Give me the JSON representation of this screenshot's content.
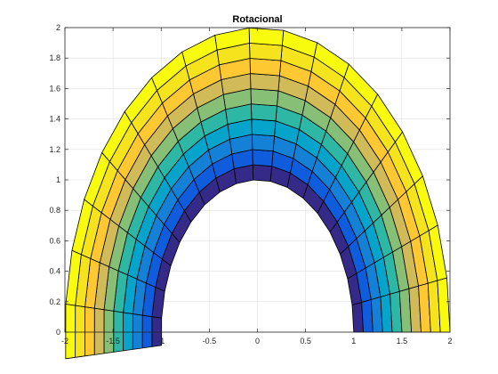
{
  "chart_data": {
    "type": "heatmap",
    "subtype": "polar-mesh-surface",
    "title": "Rotacional",
    "xlabel": "",
    "ylabel": "",
    "xlim": [
      -2,
      2
    ],
    "ylim": [
      0,
      2
    ],
    "xticks": [
      "-2",
      "-1.5",
      "-1",
      "-0.5",
      "0",
      "0.5",
      "1",
      "1.5",
      "2"
    ],
    "yticks": [
      "0",
      "0.2",
      "0.4",
      "0.6",
      "0.8",
      "1",
      "1.2",
      "1.4",
      "1.6",
      "1.8",
      "2"
    ],
    "grid": true,
    "legend": "none",
    "mesh": {
      "inner_radius": 1.0,
      "outer_radius": 2.0,
      "radial_rings": 10,
      "angle_start_deg": 0,
      "angle_end_deg": 185,
      "angular_segments": 18
    },
    "ring_values": [
      0.05,
      0.15,
      0.25,
      0.35,
      0.45,
      0.55,
      0.65,
      0.75,
      0.85,
      0.95
    ],
    "colormap": "parula",
    "colormap_stops": [
      "#352a87",
      "#0f5cdd",
      "#1481d6",
      "#06a4ca",
      "#2eb7a4",
      "#87bf77",
      "#d1bb59",
      "#fec832",
      "#f5e41d",
      "#f9fb0e"
    ]
  }
}
